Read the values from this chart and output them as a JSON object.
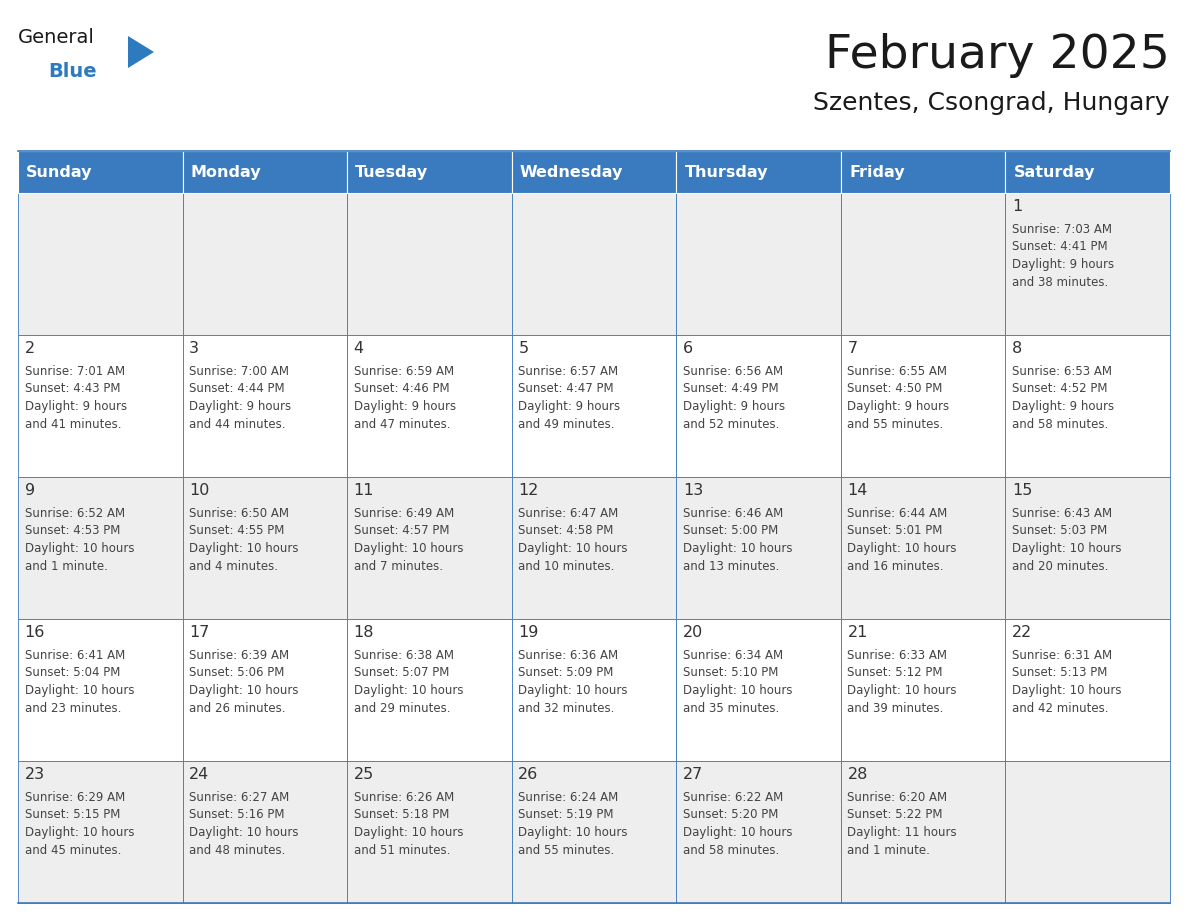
{
  "title": "February 2025",
  "subtitle": "Szentes, Csongrad, Hungary",
  "days_of_week": [
    "Sunday",
    "Monday",
    "Tuesday",
    "Wednesday",
    "Thursday",
    "Friday",
    "Saturday"
  ],
  "header_bg": "#3a7abf",
  "header_text": "#ffffff",
  "cell_bg_odd": "#eeeeee",
  "cell_bg_even": "#ffffff",
  "cell_border_color": "#3a7abf",
  "day_number_color": "#333333",
  "info_text_color": "#444444",
  "title_color": "#1a1a1a",
  "subtitle_color": "#1a1a1a",
  "logo_general_color": "#1a1a1a",
  "logo_blue_color": "#2e7abf",
  "calendar_data": [
    [
      null,
      null,
      null,
      null,
      null,
      null,
      {
        "day": "1",
        "sunrise": "7:03 AM",
        "sunset": "4:41 PM",
        "daylight1": "9 hours",
        "daylight2": "and 38 minutes."
      }
    ],
    [
      {
        "day": "2",
        "sunrise": "7:01 AM",
        "sunset": "4:43 PM",
        "daylight1": "9 hours",
        "daylight2": "and 41 minutes."
      },
      {
        "day": "3",
        "sunrise": "7:00 AM",
        "sunset": "4:44 PM",
        "daylight1": "9 hours",
        "daylight2": "and 44 minutes."
      },
      {
        "day": "4",
        "sunrise": "6:59 AM",
        "sunset": "4:46 PM",
        "daylight1": "9 hours",
        "daylight2": "and 47 minutes."
      },
      {
        "day": "5",
        "sunrise": "6:57 AM",
        "sunset": "4:47 PM",
        "daylight1": "9 hours",
        "daylight2": "and 49 minutes."
      },
      {
        "day": "6",
        "sunrise": "6:56 AM",
        "sunset": "4:49 PM",
        "daylight1": "9 hours",
        "daylight2": "and 52 minutes."
      },
      {
        "day": "7",
        "sunrise": "6:55 AM",
        "sunset": "4:50 PM",
        "daylight1": "9 hours",
        "daylight2": "and 55 minutes."
      },
      {
        "day": "8",
        "sunrise": "6:53 AM",
        "sunset": "4:52 PM",
        "daylight1": "9 hours",
        "daylight2": "and 58 minutes."
      }
    ],
    [
      {
        "day": "9",
        "sunrise": "6:52 AM",
        "sunset": "4:53 PM",
        "daylight1": "10 hours",
        "daylight2": "and 1 minute."
      },
      {
        "day": "10",
        "sunrise": "6:50 AM",
        "sunset": "4:55 PM",
        "daylight1": "10 hours",
        "daylight2": "and 4 minutes."
      },
      {
        "day": "11",
        "sunrise": "6:49 AM",
        "sunset": "4:57 PM",
        "daylight1": "10 hours",
        "daylight2": "and 7 minutes."
      },
      {
        "day": "12",
        "sunrise": "6:47 AM",
        "sunset": "4:58 PM",
        "daylight1": "10 hours",
        "daylight2": "and 10 minutes."
      },
      {
        "day": "13",
        "sunrise": "6:46 AM",
        "sunset": "5:00 PM",
        "daylight1": "10 hours",
        "daylight2": "and 13 minutes."
      },
      {
        "day": "14",
        "sunrise": "6:44 AM",
        "sunset": "5:01 PM",
        "daylight1": "10 hours",
        "daylight2": "and 16 minutes."
      },
      {
        "day": "15",
        "sunrise": "6:43 AM",
        "sunset": "5:03 PM",
        "daylight1": "10 hours",
        "daylight2": "and 20 minutes."
      }
    ],
    [
      {
        "day": "16",
        "sunrise": "6:41 AM",
        "sunset": "5:04 PM",
        "daylight1": "10 hours",
        "daylight2": "and 23 minutes."
      },
      {
        "day": "17",
        "sunrise": "6:39 AM",
        "sunset": "5:06 PM",
        "daylight1": "10 hours",
        "daylight2": "and 26 minutes."
      },
      {
        "day": "18",
        "sunrise": "6:38 AM",
        "sunset": "5:07 PM",
        "daylight1": "10 hours",
        "daylight2": "and 29 minutes."
      },
      {
        "day": "19",
        "sunrise": "6:36 AM",
        "sunset": "5:09 PM",
        "daylight1": "10 hours",
        "daylight2": "and 32 minutes."
      },
      {
        "day": "20",
        "sunrise": "6:34 AM",
        "sunset": "5:10 PM",
        "daylight1": "10 hours",
        "daylight2": "and 35 minutes."
      },
      {
        "day": "21",
        "sunrise": "6:33 AM",
        "sunset": "5:12 PM",
        "daylight1": "10 hours",
        "daylight2": "and 39 minutes."
      },
      {
        "day": "22",
        "sunrise": "6:31 AM",
        "sunset": "5:13 PM",
        "daylight1": "10 hours",
        "daylight2": "and 42 minutes."
      }
    ],
    [
      {
        "day": "23",
        "sunrise": "6:29 AM",
        "sunset": "5:15 PM",
        "daylight1": "10 hours",
        "daylight2": "and 45 minutes."
      },
      {
        "day": "24",
        "sunrise": "6:27 AM",
        "sunset": "5:16 PM",
        "daylight1": "10 hours",
        "daylight2": "and 48 minutes."
      },
      {
        "day": "25",
        "sunrise": "6:26 AM",
        "sunset": "5:18 PM",
        "daylight1": "10 hours",
        "daylight2": "and 51 minutes."
      },
      {
        "day": "26",
        "sunrise": "6:24 AM",
        "sunset": "5:19 PM",
        "daylight1": "10 hours",
        "daylight2": "and 55 minutes."
      },
      {
        "day": "27",
        "sunrise": "6:22 AM",
        "sunset": "5:20 PM",
        "daylight1": "10 hours",
        "daylight2": "and 58 minutes."
      },
      {
        "day": "28",
        "sunrise": "6:20 AM",
        "sunset": "5:22 PM",
        "daylight1": "11 hours",
        "daylight2": "and 1 minute."
      },
      null
    ]
  ]
}
